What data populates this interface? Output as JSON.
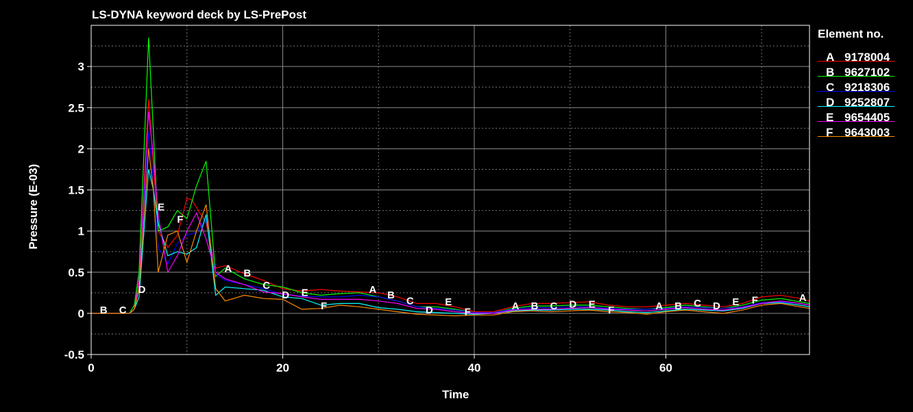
{
  "chart_data": {
    "type": "line",
    "title": "LS-DYNA keyword deck by LS-PrePost",
    "xlabel": "Time",
    "ylabel": "Pressure (E-03)",
    "xlim": [
      0,
      75
    ],
    "ylim": [
      -0.5,
      3.5
    ],
    "xticks": [
      0,
      20,
      40,
      60
    ],
    "yticks": [
      -0.5,
      0,
      0.5,
      1,
      1.5,
      2,
      2.5,
      3
    ],
    "ytick_labels": [
      "-0.5",
      "0",
      "0.5",
      "1",
      "1.5",
      "2",
      "2.5",
      "3"
    ],
    "grid": true,
    "legend_title": "Element no.",
    "legend_position": "right",
    "series": [
      {
        "name": "9178004",
        "label": "A",
        "color": "#ff0000",
        "x": [
          0,
          2,
          4,
          4.5,
          5,
          6,
          6.5,
          7,
          8,
          9,
          10,
          10.5,
          12,
          13,
          14,
          16,
          18,
          20,
          22,
          24,
          26,
          28,
          30,
          32,
          34,
          36,
          38,
          40,
          42,
          44,
          46,
          48,
          50,
          52,
          54,
          56,
          58,
          60,
          62,
          64,
          66,
          68,
          70,
          72,
          74,
          75
        ],
        "y": [
          0,
          0,
          0,
          0.05,
          0.4,
          2.6,
          1.8,
          1.0,
          0.8,
          0.95,
          1.4,
          1.38,
          1.1,
          0.55,
          0.58,
          0.48,
          0.4,
          0.3,
          0.27,
          0.29,
          0.27,
          0.26,
          0.25,
          0.2,
          0.12,
          0.12,
          0.08,
          0.02,
          0.02,
          0.08,
          0.12,
          0.12,
          0.13,
          0.14,
          0.1,
          0.08,
          0.08,
          0.1,
          0.12,
          0.1,
          0.08,
          0.12,
          0.2,
          0.22,
          0.18,
          0.15
        ],
        "markers": [
          [
            29.4,
            0.3
          ],
          [
            14.3,
            0.55
          ],
          [
            44.3,
            0.1
          ],
          [
            59.3,
            0.1
          ],
          [
            74.3,
            0.2
          ]
        ]
      },
      {
        "name": "9627102",
        "label": "B",
        "color": "#00ff00",
        "x": [
          0,
          2,
          4,
          4.5,
          5,
          6,
          6.5,
          7,
          8,
          9,
          10,
          11,
          12,
          13,
          14,
          16,
          18,
          20,
          22,
          24,
          26,
          28,
          30,
          32,
          34,
          36,
          38,
          40,
          42,
          44,
          46,
          48,
          50,
          52,
          54,
          56,
          58,
          60,
          62,
          64,
          66,
          68,
          70,
          72,
          74,
          75
        ],
        "y": [
          0,
          0,
          0,
          0.1,
          0.5,
          3.35,
          2.2,
          1.0,
          1.05,
          1.25,
          1.15,
          1.55,
          1.85,
          0.45,
          0.55,
          0.42,
          0.35,
          0.32,
          0.25,
          0.22,
          0.24,
          0.25,
          0.2,
          0.15,
          0.08,
          0.08,
          0.05,
          0.01,
          0.01,
          0.06,
          0.09,
          0.09,
          0.1,
          0.1,
          0.08,
          0.06,
          0.05,
          0.07,
          0.1,
          0.08,
          0.06,
          0.1,
          0.16,
          0.18,
          0.14,
          0.12
        ],
        "markers": [
          [
            1.3,
            0.05
          ],
          [
            16.3,
            0.5
          ],
          [
            31.3,
            0.23
          ],
          [
            46.3,
            0.1
          ],
          [
            61.3,
            0.1
          ]
        ]
      },
      {
        "name": "9218306",
        "label": "C",
        "color": "#0000ff",
        "x": [
          0,
          2,
          4,
          4.5,
          5,
          6,
          6.5,
          7,
          8,
          9,
          10,
          11,
          12,
          13,
          14,
          16,
          18,
          20,
          22,
          24,
          26,
          28,
          30,
          32,
          34,
          36,
          38,
          40,
          42,
          44,
          46,
          48,
          50,
          52,
          54,
          56,
          58,
          60,
          62,
          64,
          66,
          68,
          70,
          72,
          74,
          75
        ],
        "y": [
          0,
          0,
          0,
          0.05,
          0.3,
          2.2,
          1.6,
          0.8,
          0.6,
          0.85,
          0.95,
          0.98,
          1.15,
          0.48,
          0.4,
          0.35,
          0.3,
          0.23,
          0.21,
          0.2,
          0.2,
          0.22,
          0.2,
          0.15,
          0.08,
          0.06,
          0.04,
          0.01,
          0.01,
          0.05,
          0.07,
          0.07,
          0.08,
          0.08,
          0.06,
          0.05,
          0.05,
          0.06,
          0.08,
          0.07,
          0.06,
          0.08,
          0.13,
          0.14,
          0.12,
          0.1
        ],
        "markers": [
          [
            3.3,
            0.05
          ],
          [
            18.3,
            0.35
          ],
          [
            33.3,
            0.16
          ],
          [
            48.3,
            0.1
          ],
          [
            63.3,
            0.13
          ]
        ]
      },
      {
        "name": "9252807",
        "label": "D",
        "color": "#00ffff",
        "x": [
          0,
          2,
          4,
          4.5,
          5,
          6,
          6.5,
          7,
          8,
          9,
          10,
          11,
          12,
          13,
          14,
          16,
          18,
          20,
          22,
          24,
          26,
          28,
          30,
          32,
          34,
          36,
          38,
          40,
          42,
          44,
          46,
          48,
          50,
          52,
          54,
          56,
          58,
          60,
          62,
          64,
          66,
          68,
          70,
          72,
          74,
          75
        ],
        "y": [
          0,
          0,
          0,
          0.05,
          0.2,
          1.75,
          1.5,
          1.1,
          0.7,
          0.75,
          0.72,
          0.8,
          1.2,
          0.22,
          0.32,
          0.3,
          0.28,
          0.2,
          0.18,
          0.1,
          0.12,
          0.12,
          0.07,
          0.05,
          0.02,
          0.01,
          0.0,
          -0.01,
          0.0,
          0.03,
          0.04,
          0.04,
          0.05,
          0.05,
          0.04,
          0.02,
          0.01,
          0.03,
          0.05,
          0.04,
          0.03,
          0.06,
          0.12,
          0.13,
          0.1,
          0.08
        ],
        "markers": [
          [
            5.3,
            0.3
          ],
          [
            20.3,
            0.23
          ],
          [
            35.3,
            0.05
          ],
          [
            50.3,
            0.12
          ],
          [
            65.3,
            0.1
          ]
        ]
      },
      {
        "name": "9654405",
        "label": "E",
        "color": "#ff00ff",
        "x": [
          0,
          2,
          4,
          4.5,
          5,
          6,
          6.5,
          7,
          8,
          9,
          10,
          11,
          12,
          13,
          14,
          16,
          18,
          20,
          22,
          24,
          26,
          28,
          30,
          32,
          34,
          36,
          38,
          40,
          42,
          44,
          46,
          48,
          50,
          52,
          54,
          56,
          58,
          60,
          62,
          64,
          66,
          68,
          70,
          72,
          74,
          75
        ],
        "y": [
          0,
          0,
          0,
          0.05,
          0.4,
          2.45,
          1.9,
          1.2,
          0.5,
          0.7,
          1.0,
          1.22,
          0.9,
          0.5,
          0.42,
          0.35,
          0.26,
          0.24,
          0.2,
          0.17,
          0.17,
          0.17,
          0.15,
          0.12,
          0.06,
          0.05,
          0.02,
          0.0,
          0.0,
          0.04,
          0.05,
          0.05,
          0.06,
          0.07,
          0.05,
          0.04,
          0.03,
          0.05,
          0.07,
          0.05,
          0.04,
          0.07,
          0.12,
          0.15,
          0.12,
          0.1
        ],
        "markers": [
          [
            7.3,
            1.3
          ],
          [
            22.3,
            0.26
          ],
          [
            37.3,
            0.15
          ],
          [
            52.3,
            0.12
          ],
          [
            67.3,
            0.15
          ]
        ]
      },
      {
        "name": "9643003",
        "label": "F",
        "color": "#ff8c00",
        "x": [
          0,
          2,
          4,
          4.5,
          5,
          6,
          6.5,
          7,
          8,
          9,
          10,
          11,
          12,
          13,
          14,
          16,
          18,
          20,
          22,
          24,
          26,
          28,
          30,
          32,
          34,
          36,
          38,
          40,
          42,
          44,
          46,
          48,
          50,
          52,
          54,
          56,
          58,
          60,
          62,
          64,
          66,
          68,
          70,
          72,
          74,
          75
        ],
        "y": [
          0,
          0,
          0,
          0.05,
          0.3,
          2.0,
          1.5,
          0.5,
          0.95,
          1.0,
          0.62,
          1.0,
          1.32,
          0.3,
          0.15,
          0.22,
          0.18,
          0.17,
          0.05,
          0.06,
          0.1,
          0.08,
          0.05,
          0.02,
          -0.01,
          -0.02,
          -0.03,
          -0.02,
          -0.02,
          0.02,
          0.03,
          0.02,
          0.03,
          0.04,
          0.02,
          0.01,
          -0.01,
          0.02,
          0.04,
          0.02,
          0.0,
          0.04,
          0.1,
          0.12,
          0.08,
          0.06
        ],
        "markers": [
          [
            9.3,
            1.15
          ],
          [
            24.3,
            0.1
          ],
          [
            39.3,
            0.03
          ],
          [
            54.3,
            0.05
          ],
          [
            69.3,
            0.17
          ]
        ]
      }
    ]
  }
}
